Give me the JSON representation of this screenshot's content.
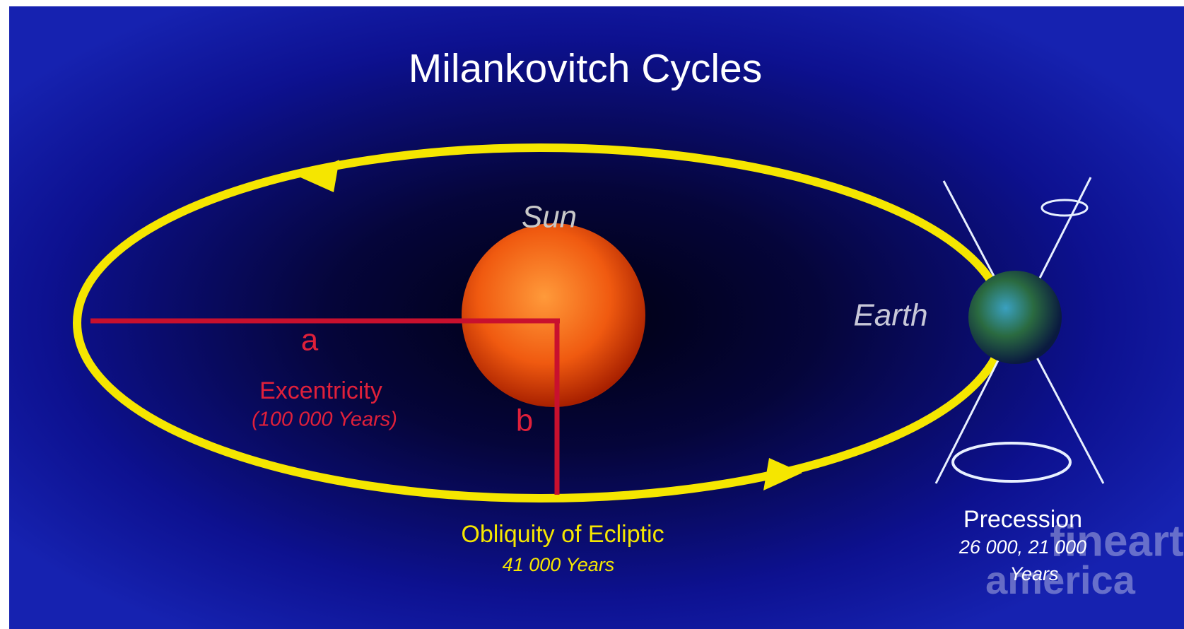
{
  "title": "Milankovitch Cycles",
  "labels": {
    "sun": "Sun",
    "earth": "Earth",
    "a": "a",
    "b": "b"
  },
  "excentricity": {
    "name": "Excentricity",
    "period": "(100 000 Years)"
  },
  "obliquity": {
    "name": "Obliquity of Ecliptic",
    "period": "41 000 Years"
  },
  "precession": {
    "name": "Precession",
    "period": "26 000, 21 000",
    "unit": "Years"
  },
  "watermark": {
    "line1": "fineart",
    "line2": "america"
  }
}
